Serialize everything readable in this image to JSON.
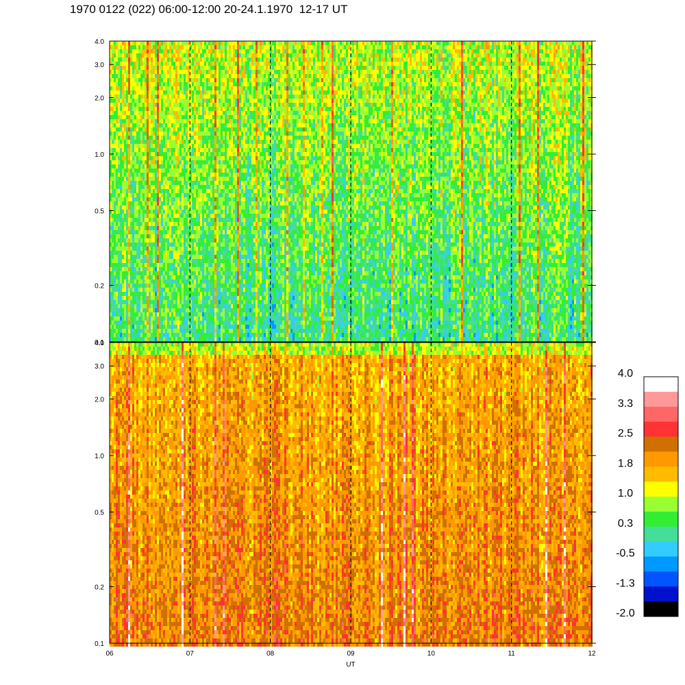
{
  "title": "1970 0122 (022) 06:00-12:00 20-24.1.1970  12-17 UT",
  "chart_data": [
    {
      "type": "heatmap",
      "panel": "top",
      "yscale": "log",
      "ylim": [
        0.1,
        4.0
      ],
      "ytick_labels": [
        "0.1",
        "0.2",
        "0.5",
        "1.0",
        "2.0",
        "3.0",
        "4.0"
      ],
      "ytick_values": [
        0.1,
        0.2,
        0.5,
        1.0,
        2.0,
        3.0,
        4.0
      ],
      "dominant_levels": [
        0.3,
        1.0
      ],
      "grid": "vertical dashed at each hour"
    },
    {
      "type": "heatmap",
      "panel": "bottom",
      "yscale": "log",
      "ylim": [
        0.1,
        4.0
      ],
      "ytick_labels": [
        "0.1",
        "0.2",
        "0.5",
        "1.0",
        "2.0",
        "3.0",
        "4.0"
      ],
      "ytick_values": [
        0.1,
        0.2,
        0.5,
        1.0,
        2.0,
        3.0,
        4.0
      ],
      "dominant_levels": [
        1.8,
        2.5
      ],
      "grid": "vertical dashed at each hour"
    }
  ],
  "xaxis": {
    "label": "UT",
    "ticks": [
      "06",
      "07",
      "08",
      "09",
      "10",
      "11",
      "12"
    ],
    "range": [
      6,
      12
    ]
  },
  "colorbar": {
    "labels": [
      "4.0",
      "3.3",
      "2.5",
      "1.8",
      "1.0",
      "0.3",
      "-0.5",
      "-1.3",
      "-2.0"
    ],
    "colors": [
      "#ffffff",
      "#ff9999",
      "#ff6666",
      "#ff3333",
      "#d07000",
      "#ff9900",
      "#ffbb00",
      "#ffff00",
      "#99ff33",
      "#33ee33",
      "#44dd99",
      "#33ccff",
      "#0099ff",
      "#0055ff",
      "#0011cc",
      "#000000"
    ]
  }
}
